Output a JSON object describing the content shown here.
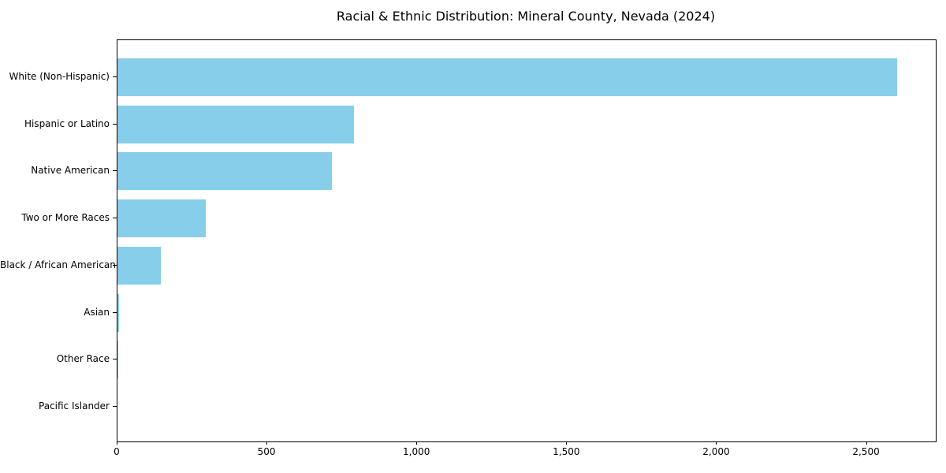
{
  "chart_data": {
    "type": "bar",
    "orientation": "horizontal",
    "title": "Racial & Ethnic Distribution: Mineral County, Nevada (2024)",
    "categories": [
      "White (Non-Hispanic)",
      "Hispanic or Latino",
      "Native American",
      "Two or More Races",
      "Black / African American",
      "Asian",
      "Other Race",
      "Pacific Islander"
    ],
    "values": [
      2600,
      790,
      715,
      295,
      145,
      4,
      2,
      0
    ],
    "xlabel": "",
    "ylabel": "",
    "xlim": [
      0,
      2730
    ],
    "x_ticks": [
      0,
      500,
      1000,
      1500,
      2000,
      2500
    ],
    "x_tick_labels": [
      "0",
      "500",
      "1,000",
      "1,500",
      "2,000",
      "2,500"
    ],
    "bar_color": "#87CEEB",
    "text_color": "#000000",
    "grid": false,
    "legend": null
  }
}
